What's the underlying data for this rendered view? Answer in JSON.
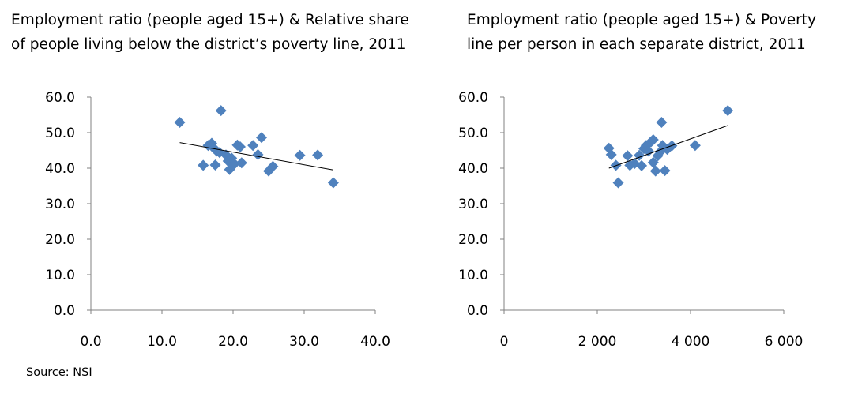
{
  "source_note": "Source: NSI",
  "colors": {
    "marker": "#4F81BD",
    "trendline": "#000000",
    "axis": "#808080"
  },
  "chart_data": [
    {
      "type": "scatter",
      "title_lines": [
        "Employment ratio (people aged 15+) & Relative share",
        "of people living below the district’s poverty line, 2011"
      ],
      "xlim": [
        0,
        40
      ],
      "ylim": [
        0,
        60
      ],
      "x_ticks": [
        0,
        10,
        20,
        30,
        40
      ],
      "x_tick_labels": [
        "0.0",
        "10.0",
        "20.0",
        "30.0",
        "40.0"
      ],
      "y_ticks": [
        0,
        10,
        20,
        30,
        40,
        50,
        60
      ],
      "y_tick_labels": [
        "0.0",
        "10.0",
        "20.0",
        "30.0",
        "40.0",
        "50.0",
        "60.0"
      ],
      "marker": "diamond",
      "points": [
        {
          "x": 12.5,
          "y": 52.9
        },
        {
          "x": 18.3,
          "y": 56.2
        },
        {
          "x": 15.8,
          "y": 40.8
        },
        {
          "x": 16.5,
          "y": 46.4
        },
        {
          "x": 17.0,
          "y": 47.0
        },
        {
          "x": 17.3,
          "y": 45.6
        },
        {
          "x": 17.7,
          "y": 44.8
        },
        {
          "x": 18.1,
          "y": 44.4
        },
        {
          "x": 17.5,
          "y": 40.9
        },
        {
          "x": 19.0,
          "y": 43.7
        },
        {
          "x": 19.3,
          "y": 42.0
        },
        {
          "x": 19.5,
          "y": 39.6
        },
        {
          "x": 19.8,
          "y": 42.8
        },
        {
          "x": 20.2,
          "y": 41.2
        },
        {
          "x": 20.6,
          "y": 46.5
        },
        {
          "x": 21.0,
          "y": 46.0
        },
        {
          "x": 21.2,
          "y": 41.5
        },
        {
          "x": 22.8,
          "y": 46.4
        },
        {
          "x": 23.5,
          "y": 43.8
        },
        {
          "x": 24.0,
          "y": 48.6
        },
        {
          "x": 25.0,
          "y": 39.2
        },
        {
          "x": 25.6,
          "y": 40.5
        },
        {
          "x": 29.4,
          "y": 43.6
        },
        {
          "x": 31.9,
          "y": 43.7
        },
        {
          "x": 34.1,
          "y": 35.9
        }
      ],
      "trendline": [
        {
          "x": 12.5,
          "y": 47.2
        },
        {
          "x": 34.1,
          "y": 39.5
        }
      ]
    },
    {
      "type": "scatter",
      "title_lines": [
        "Employment ratio (people aged 15+) & Poverty",
        "line per person in each separate district, 2011"
      ],
      "xlim": [
        0,
        6000
      ],
      "ylim": [
        0,
        60
      ],
      "x_ticks": [
        0,
        2000,
        4000,
        6000
      ],
      "x_tick_labels": [
        "0",
        "2 000",
        "4 000",
        "6 000"
      ],
      "y_ticks": [
        0,
        10,
        20,
        30,
        40,
        50,
        60
      ],
      "y_tick_labels": [
        "0.0",
        "10.0",
        "20.0",
        "30.0",
        "40.0",
        "50.0",
        "60.0"
      ],
      "marker": "diamond",
      "points": [
        {
          "x": 2250,
          "y": 45.6
        },
        {
          "x": 2300,
          "y": 43.8
        },
        {
          "x": 2400,
          "y": 40.8
        },
        {
          "x": 2450,
          "y": 35.9
        },
        {
          "x": 2650,
          "y": 43.5
        },
        {
          "x": 2700,
          "y": 40.8
        },
        {
          "x": 2800,
          "y": 41.3
        },
        {
          "x": 2900,
          "y": 43.6
        },
        {
          "x": 2950,
          "y": 40.7
        },
        {
          "x": 3000,
          "y": 45.5
        },
        {
          "x": 3050,
          "y": 46.4
        },
        {
          "x": 3100,
          "y": 44.8
        },
        {
          "x": 3150,
          "y": 47.4
        },
        {
          "x": 3200,
          "y": 48.0
        },
        {
          "x": 3200,
          "y": 41.6
        },
        {
          "x": 3250,
          "y": 39.2
        },
        {
          "x": 3300,
          "y": 43.5
        },
        {
          "x": 3350,
          "y": 44.6
        },
        {
          "x": 3380,
          "y": 52.9
        },
        {
          "x": 3400,
          "y": 46.4
        },
        {
          "x": 3450,
          "y": 39.3
        },
        {
          "x": 3500,
          "y": 45.3
        },
        {
          "x": 3600,
          "y": 46.3
        },
        {
          "x": 4100,
          "y": 46.4
        },
        {
          "x": 4800,
          "y": 56.2
        }
      ],
      "trendline": [
        {
          "x": 2250,
          "y": 40.0
        },
        {
          "x": 4800,
          "y": 52.0
        }
      ]
    }
  ]
}
